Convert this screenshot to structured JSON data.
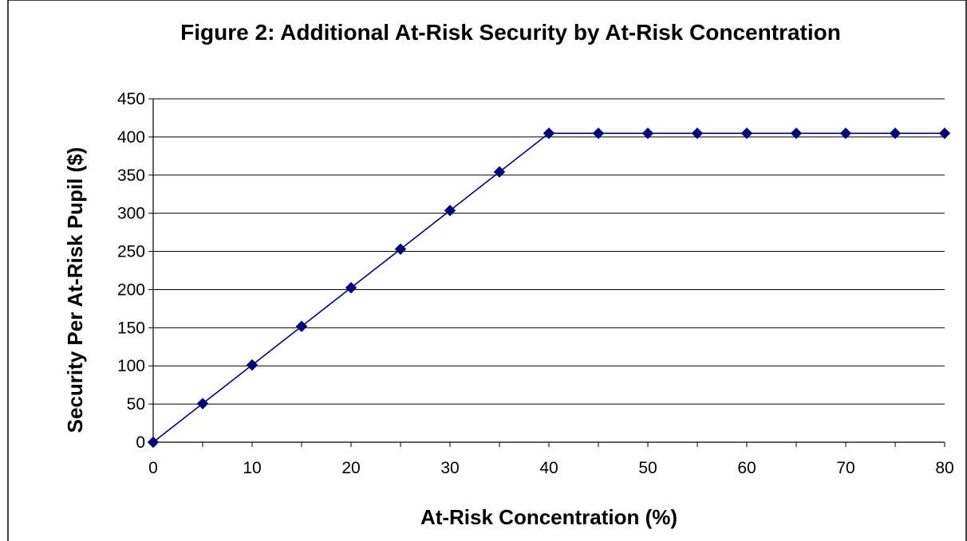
{
  "chart_data": {
    "type": "line",
    "title": "Figure 2: Additional At-Risk Security by At-Risk Concentration",
    "xlabel": "At-Risk Concentration (%)",
    "ylabel": "Security Per At-Risk  Pupil ($)",
    "xlim": [
      0,
      80
    ],
    "ylim": [
      0,
      450
    ],
    "x_ticks": [
      "0",
      "10",
      "20",
      "30",
      "40",
      "50",
      "60",
      "70",
      "80"
    ],
    "y_ticks": [
      "0",
      "50",
      "100",
      "150",
      "200",
      "250",
      "300",
      "350",
      "400",
      "450"
    ],
    "grid": true,
    "legend": "none",
    "series": [
      {
        "color": "#000080",
        "marker": "diamond",
        "x": [
          0,
          5,
          10,
          15,
          20,
          25,
          30,
          35,
          40,
          45,
          50,
          55,
          60,
          65,
          70,
          75,
          80
        ],
        "y": [
          0,
          50.6,
          101.2,
          151.8,
          202.4,
          253,
          303.6,
          354.2,
          404.8,
          404.8,
          404.8,
          404.8,
          404.8,
          404.8,
          404.8,
          404.8,
          404.8
        ]
      }
    ]
  }
}
